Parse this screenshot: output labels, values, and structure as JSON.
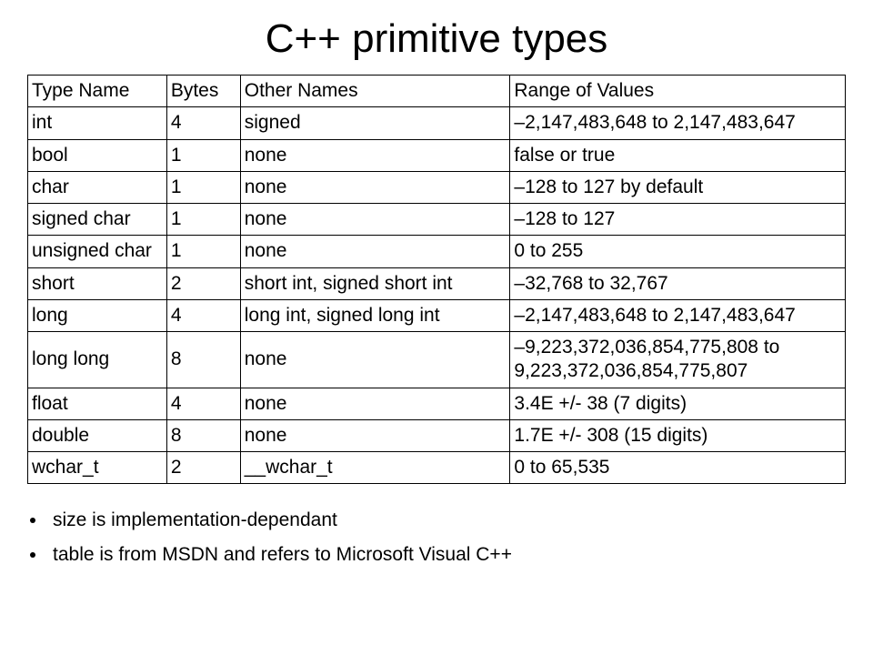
{
  "title": "C++ primitive types",
  "table": {
    "columns": [
      {
        "label": "Type Name",
        "width": "17%"
      },
      {
        "label": "Bytes",
        "width": "9%"
      },
      {
        "label": "Other Names",
        "width": "33%"
      },
      {
        "label": "Range of Values",
        "width": "41%"
      }
    ],
    "rows": [
      {
        "type": "int",
        "bytes": "4",
        "other": "signed",
        "range": "–2,147,483,648 to 2,147,483,647"
      },
      {
        "type": "bool",
        "bytes": "1",
        "other": "none",
        "range": "false or true"
      },
      {
        "type": "char",
        "bytes": "1",
        "other": "none",
        "range": "–128 to 127 by default"
      },
      {
        "type": "signed char",
        "bytes": "1",
        "other": "none",
        "range": "–128 to 127"
      },
      {
        "type": "unsigned char",
        "bytes": "1",
        "other": "none",
        "range": "0 to 255"
      },
      {
        "type": "short",
        "bytes": "2",
        "other": "short int, signed short int",
        "range": "–32,768 to 32,767"
      },
      {
        "type": "long",
        "bytes": "4",
        "other": "long int, signed long int",
        "range": "–2,147,483,648 to 2,147,483,647"
      },
      {
        "type": "long long",
        "bytes": "8",
        "other": "none",
        "range": "–9,223,372,036,854,775,808 to 9,223,372,036,854,775,807"
      },
      {
        "type": "float",
        "bytes": "4",
        "other": "none",
        "range": "3.4E +/- 38 (7 digits)"
      },
      {
        "type": "double",
        "bytes": "8",
        "other": "none",
        "range": "1.7E +/- 308 (15 digits)"
      },
      {
        "type": "wchar_t",
        "bytes": "2",
        "other": "__wchar_t",
        "range": "0 to 65,535"
      }
    ],
    "border_color": "#000000",
    "cell_fontsize": 21
  },
  "notes": [
    "size is implementation-dependant",
    "table is from MSDN and refers to Microsoft Visual C++"
  ],
  "colors": {
    "background": "#ffffff",
    "text": "#000000"
  },
  "typography": {
    "title_fontsize": 44,
    "body_fontsize": 21,
    "font_family": "Arial"
  }
}
